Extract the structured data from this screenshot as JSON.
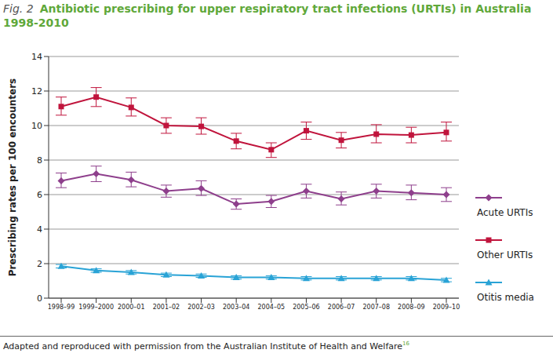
{
  "chart_data": {
    "type": "line",
    "figure_label": "Fig. 2",
    "title": "Antibiotic prescribing for upper respiratory tract infections (URTIs) in Australia 1998-2010",
    "y_label": "Prescribing rates per 100 encounters",
    "source": "Adapted and reproduced with permission from the Australian Institute of Health and Welfare",
    "source_ref": "16",
    "categories": [
      "1998–99",
      "1999–2000",
      "2000–01",
      "2001–02",
      "2002–03",
      "2003–04",
      "2004–05",
      "2005–06",
      "2006–07",
      "2007–08",
      "2008–09",
      "2009–10"
    ],
    "ylim": [
      0,
      14
    ],
    "yticks": [
      0,
      2,
      4,
      6,
      8,
      10,
      12,
      14
    ],
    "grid": true,
    "legend": "right",
    "series": [
      {
        "name": "Acute URTIs",
        "color": "#8e3f8c",
        "marker": "diamond",
        "values": [
          6.8,
          7.2,
          6.85,
          6.2,
          6.35,
          5.45,
          5.6,
          6.2,
          5.75,
          6.2,
          6.1,
          6.0
        ],
        "lower": [
          6.4,
          6.75,
          6.45,
          5.85,
          5.95,
          5.15,
          5.25,
          5.8,
          5.4,
          5.8,
          5.7,
          5.6
        ],
        "upper": [
          7.25,
          7.65,
          7.3,
          6.55,
          6.8,
          5.75,
          5.95,
          6.6,
          6.15,
          6.6,
          6.55,
          6.4
        ]
      },
      {
        "name": "Other URTIs",
        "color": "#c0143c",
        "marker": "square",
        "values": [
          11.1,
          11.65,
          11.05,
          10.0,
          9.95,
          9.1,
          8.6,
          9.7,
          9.15,
          9.5,
          9.45,
          9.6
        ],
        "lower": [
          10.6,
          11.1,
          10.55,
          9.55,
          9.5,
          8.65,
          8.15,
          9.2,
          8.7,
          9.0,
          9.0,
          9.1
        ],
        "upper": [
          11.65,
          12.2,
          11.6,
          10.45,
          10.45,
          9.55,
          9.0,
          10.2,
          9.6,
          10.05,
          9.9,
          10.2
        ]
      },
      {
        "name": "Otitis media",
        "color": "#29a3d6",
        "marker": "triangle",
        "values": [
          1.85,
          1.6,
          1.5,
          1.35,
          1.3,
          1.2,
          1.2,
          1.15,
          1.15,
          1.15,
          1.15,
          1.05
        ],
        "lower": [
          1.75,
          1.5,
          1.4,
          1.25,
          1.2,
          1.1,
          1.1,
          1.05,
          1.05,
          1.05,
          1.05,
          0.95
        ],
        "upper": [
          1.95,
          1.7,
          1.6,
          1.45,
          1.4,
          1.3,
          1.3,
          1.25,
          1.25,
          1.25,
          1.25,
          1.15
        ]
      }
    ]
  }
}
